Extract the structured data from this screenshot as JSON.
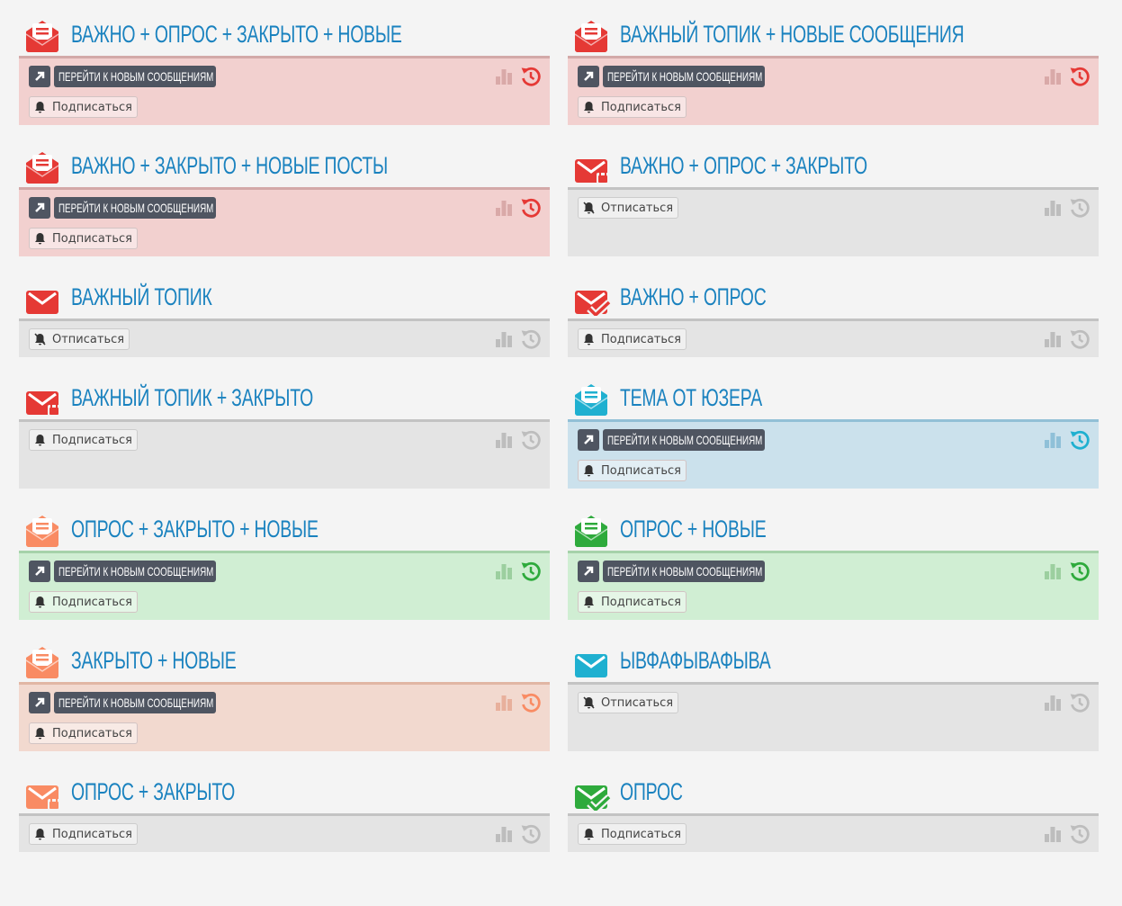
{
  "labels": {
    "goto": "ПЕРЕЙТИ К НОВЫМ СООБЩЕНИЯМ",
    "subscribe": "Подписаться",
    "unsubscribe": "Отписаться"
  },
  "colors": {
    "red": "#e53935",
    "cyan": "#1fb0d0",
    "orange": "#f98b63",
    "green": "#2eaa3c",
    "title": "#1a82bf"
  },
  "topics": [
    {
      "title": "ВАЖНО + ОПРОС + ЗАКРЫТО + НОВЫЕ",
      "icon": "envelope-open-icon",
      "color": "red",
      "style": "red",
      "goto": true,
      "action": "subscribe"
    },
    {
      "title": "ВАЖНЫЙ ТОПИК + НОВЫЕ СООБЩЕНИЯ",
      "icon": "envelope-open-icon",
      "color": "red",
      "style": "red",
      "goto": true,
      "action": "subscribe"
    },
    {
      "title": "ВАЖНО + ЗАКРЫТО + НОВЫЕ ПОСТЫ",
      "icon": "envelope-open-icon",
      "color": "red",
      "style": "red",
      "goto": true,
      "action": "subscribe"
    },
    {
      "title": "ВАЖНО + ОПРОС + ЗАКРЫТО",
      "icon": "envelope-lock-icon",
      "color": "red",
      "style": "gray",
      "goto": false,
      "action": "unsubscribe"
    },
    {
      "title": "ВАЖНЫЙ ТОПИК",
      "icon": "envelope-icon",
      "color": "red",
      "style": "gray",
      "goto": false,
      "action": "unsubscribe"
    },
    {
      "title": "ВАЖНО + ОПРОС",
      "icon": "envelope-check-icon",
      "color": "red",
      "style": "gray",
      "goto": false,
      "action": "subscribe"
    },
    {
      "title": "ВАЖНЫЙ ТОПИК + ЗАКРЫТО",
      "icon": "envelope-lock-icon",
      "color": "red",
      "style": "gray",
      "goto": false,
      "action": "subscribe"
    },
    {
      "title": "ТЕМА ОТ ЮЗЕРА",
      "icon": "envelope-open-icon",
      "color": "cyan",
      "style": "blue",
      "goto": true,
      "action": "subscribe"
    },
    {
      "title": "ОПРОС + ЗАКРЫТО + НОВЫЕ",
      "icon": "envelope-open-icon",
      "color": "orange",
      "style": "green",
      "goto": true,
      "action": "subscribe"
    },
    {
      "title": "ОПРОС + НОВЫЕ",
      "icon": "envelope-open-icon",
      "color": "green",
      "style": "green",
      "goto": true,
      "action": "subscribe"
    },
    {
      "title": "ЗАКРЫТО + НОВЫЕ",
      "icon": "envelope-open-icon",
      "color": "orange",
      "style": "orange",
      "goto": true,
      "action": "subscribe"
    },
    {
      "title": "ЫВФАФЫВАФЫВА",
      "icon": "envelope-icon",
      "color": "cyan",
      "style": "gray",
      "goto": false,
      "action": "unsubscribe"
    },
    {
      "title": "ОПРОС + ЗАКРЫТО",
      "icon": "envelope-lock-icon",
      "color": "orange",
      "style": "gray",
      "goto": false,
      "action": "subscribe"
    },
    {
      "title": "ОПРОС",
      "icon": "envelope-check-icon",
      "color": "green",
      "style": "gray",
      "goto": false,
      "action": "subscribe"
    }
  ]
}
